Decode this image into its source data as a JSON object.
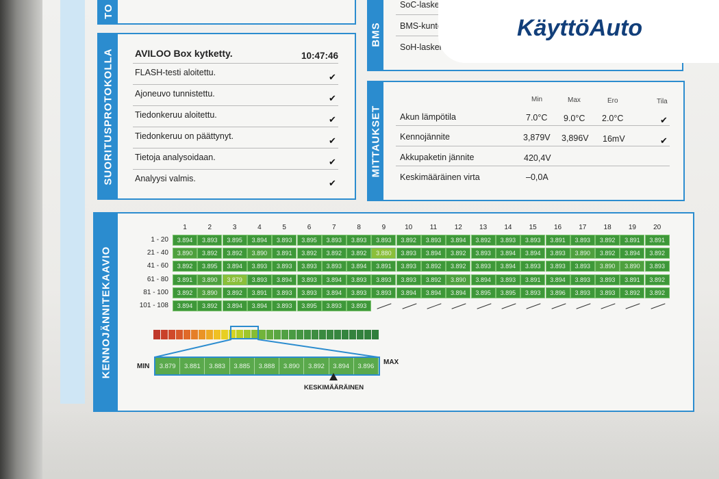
{
  "logo": {
    "text": "KäyttöAuto"
  },
  "suoritusprotokolla": {
    "label": "SUORITUSPROTOKOLLA",
    "title": "AVILOO Box kytketty.",
    "time": "10:47:46",
    "items": [
      {
        "text": "FLASH-testi aloitettu."
      },
      {
        "text": "Ajoneuvo tunnistettu."
      },
      {
        "text": "Tiedonkeruu aloitettu."
      },
      {
        "text": "Tiedonkeruu on päättynyt."
      },
      {
        "text": "Tietoja analysoidaan."
      },
      {
        "text": "Analyysi valmis."
      }
    ]
  },
  "top_left_label": "TO",
  "top_right": {
    "label": "BMS",
    "items": [
      {
        "text": "SoC-laskenn"
      },
      {
        "text": "BMS-kunto (SoH)"
      },
      {
        "text": "SoH-laskennan tarkkuu"
      }
    ]
  },
  "mittaukset": {
    "label": "MITTAUKSET",
    "headers": {
      "min": "Min",
      "max": "Max",
      "ero": "Ero",
      "tila": "Tila"
    },
    "rows": [
      {
        "name": "Akun lämpötila",
        "min": "7.0°C",
        "max": "9.0°C",
        "ero": "2.0°C",
        "ok": true
      },
      {
        "name": "Kennojännite",
        "min": "3,879V",
        "max": "3,896V",
        "ero": "16mV",
        "ok": true
      },
      {
        "name": "Akkupaketin jännite",
        "min": "420,4V",
        "max": "",
        "ero": "",
        "ok": false
      },
      {
        "name": "Keskimääräinen virta",
        "min": "–0,0A",
        "max": "",
        "ero": "",
        "ok": false
      }
    ]
  },
  "kennojannitekaavio": {
    "label": "KENNOJÄNNITEKAAVIO",
    "columns": [
      "1",
      "2",
      "3",
      "4",
      "5",
      "6",
      "7",
      "8",
      "9",
      "10",
      "11",
      "12",
      "13",
      "14",
      "15",
      "16",
      "17",
      "18",
      "19",
      "20"
    ],
    "row_labels": [
      "1 - 20",
      "21 - 40",
      "41 - 60",
      "61 - 80",
      "81 - 100",
      "101 - 108"
    ],
    "rows": [
      [
        "3.894",
        "3.893",
        "3.895",
        "3.894",
        "3.893",
        "3.895",
        "3.893",
        "3.893",
        "3.893",
        "3.892",
        "3.893",
        "3.894",
        "3.892",
        "3.893",
        "3.893",
        "3.891",
        "3.893",
        "3.892",
        "3.891",
        "3.891"
      ],
      [
        "3.890",
        "3.892",
        "3.892",
        "3.890",
        "3.891",
        "3.892",
        "3.892",
        "3.892",
        "3.880",
        "3.893",
        "3.894",
        "3.892",
        "3.893",
        "3.894",
        "3.894",
        "3.893",
        "3.890",
        "3.892",
        "3.894",
        "3.892"
      ],
      [
        "3.892",
        "3.895",
        "3.894",
        "3.893",
        "3.893",
        "3.893",
        "3.893",
        "3.894",
        "3.891",
        "3.893",
        "3.892",
        "3.892",
        "3.893",
        "3.894",
        "3.893",
        "3.893",
        "3.893",
        "3.890",
        "3.890",
        "3.893"
      ],
      [
        "3.891",
        "3.890",
        "3.879",
        "3.893",
        "3.894",
        "3.893",
        "3.894",
        "3.893",
        "3.893",
        "3.893",
        "3.892",
        "3.890",
        "3.894",
        "3.893",
        "3.891",
        "3.894",
        "3.893",
        "3.893",
        "3.891",
        "3.892"
      ],
      [
        "3.892",
        "3.890",
        "3.892",
        "3.891",
        "3.893",
        "3.893",
        "3.894",
        "3.893",
        "3.893",
        "3.894",
        "3.894",
        "3.894",
        "3.895",
        "3.895",
        "3.893",
        "3.896",
        "3.893",
        "3.893",
        "3.892",
        "3.892"
      ],
      [
        "3.894",
        "3.892",
        "3.894",
        "3.894",
        "3.893",
        "3.895",
        "3.893",
        "3.893"
      ]
    ],
    "scale_values": [
      "3.879",
      "3.881",
      "3.883",
      "3.885",
      "3.888",
      "3.890",
      "3.892",
      "3.894",
      "3.896"
    ],
    "min_label": "MIN",
    "max_label": "MAX",
    "avg_label": "KESKIMÄÄRÄINEN",
    "gradient_colors": [
      "#c0392b",
      "#c9412a",
      "#d04a2a",
      "#d8592a",
      "#e06a29",
      "#e57f28",
      "#ea9426",
      "#eeaa24",
      "#f0c023",
      "#e8cf22",
      "#d5d423",
      "#bccf25",
      "#9fc62c",
      "#86bd33",
      "#72b43a",
      "#63ab3e",
      "#5aa642",
      "#51a043",
      "#4a9b43",
      "#459642",
      "#409142",
      "#3d8d41",
      "#3a8a40",
      "#38883f",
      "#36863f",
      "#34843e",
      "#33823d",
      "#32813d",
      "#31803c",
      "#307f3c"
    ]
  }
}
